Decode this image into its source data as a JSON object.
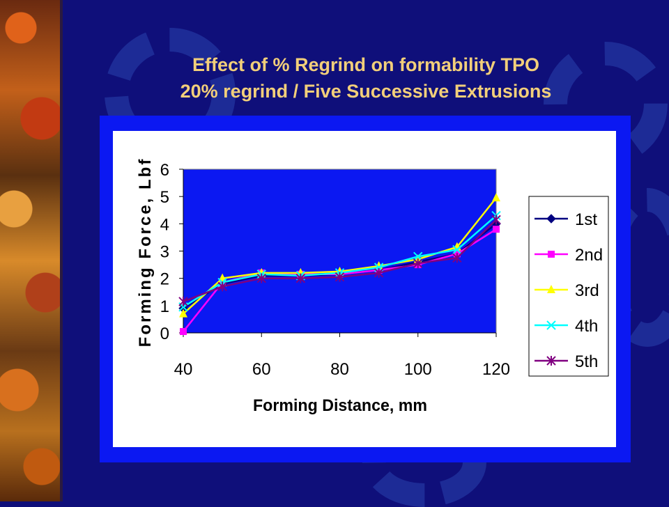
{
  "slide": {
    "title_line1": "Effect of % Regrind on formability TPO",
    "title_line2": "20% regrind / Five Successive Extrusions",
    "background_color": "#0f0f7a",
    "title_color": "#f2cf7a",
    "frame_color": "#0b18f2"
  },
  "chart_data": {
    "type": "line",
    "title": "",
    "xlabel": "Forming Distance, mm",
    "ylabel": "Forming Force, Lbf",
    "x": [
      40,
      50,
      60,
      70,
      80,
      90,
      100,
      110,
      120
    ],
    "xlim": [
      40,
      120
    ],
    "ylim": [
      0,
      6
    ],
    "x_ticks": [
      40,
      60,
      80,
      100,
      120
    ],
    "y_ticks": [
      0,
      1,
      2,
      3,
      4,
      5,
      6
    ],
    "grid": false,
    "plot_background": "#0b18f2",
    "legend_position": "right",
    "series": [
      {
        "name": "1st",
        "color": "#000080",
        "marker": "diamond",
        "values": [
          0.9,
          1.8,
          2.1,
          2.1,
          2.15,
          2.3,
          2.6,
          2.9,
          4.0
        ]
      },
      {
        "name": "2nd",
        "color": "#ff00ff",
        "marker": "square",
        "values": [
          0.05,
          1.85,
          2.2,
          2.15,
          2.15,
          2.3,
          2.5,
          2.9,
          3.8
        ]
      },
      {
        "name": "3rd",
        "color": "#ffff00",
        "marker": "triangle",
        "values": [
          0.7,
          2.0,
          2.2,
          2.2,
          2.25,
          2.45,
          2.7,
          3.15,
          4.95
        ]
      },
      {
        "name": "4th",
        "color": "#00ffff",
        "marker": "x",
        "values": [
          0.95,
          1.85,
          2.15,
          2.1,
          2.2,
          2.4,
          2.8,
          3.05,
          4.3
        ]
      },
      {
        "name": "5th",
        "color": "#800080",
        "marker": "star",
        "values": [
          1.15,
          1.7,
          2.0,
          2.0,
          2.05,
          2.2,
          2.55,
          2.75,
          4.15
        ]
      }
    ]
  }
}
